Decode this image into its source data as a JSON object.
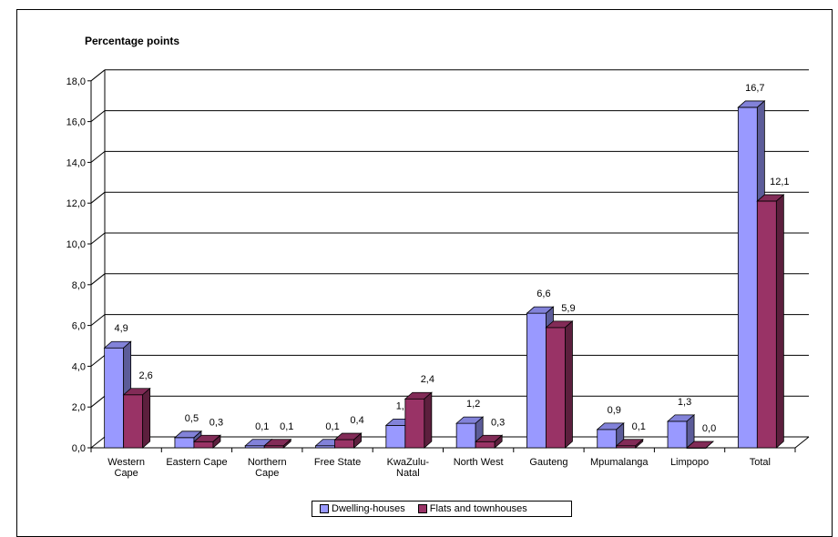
{
  "chart_data": {
    "type": "bar",
    "title": "",
    "ylabel": "Percentage points",
    "xlabel": "",
    "ylim": [
      0,
      18
    ],
    "yticks": [
      "0,0",
      "2,0",
      "4,0",
      "6,0",
      "8,0",
      "10,0",
      "12,0",
      "14,0",
      "16,0",
      "18,0"
    ],
    "categories": [
      [
        "Western",
        "Cape"
      ],
      [
        "Eastern Cape"
      ],
      [
        "Northern",
        "Cape"
      ],
      [
        "Free State"
      ],
      [
        "KwaZulu-",
        "Natal"
      ],
      [
        "North West"
      ],
      [
        "Gauteng"
      ],
      [
        "Mpumalanga"
      ],
      [
        "Limpopo"
      ],
      [
        "Total"
      ]
    ],
    "series": [
      {
        "name": "Dwelling-houses",
        "color": "#9999ff",
        "values": [
          4.9,
          0.5,
          0.1,
          0.1,
          1.1,
          1.2,
          6.6,
          0.9,
          1.3,
          16.7
        ],
        "labels": [
          "4,9",
          "0,5",
          "0,1",
          "0,1",
          "1,1",
          "1,2",
          "6,6",
          "0,9",
          "1,3",
          "16,7"
        ]
      },
      {
        "name": "Flats and townhouses",
        "color": "#993366",
        "values": [
          2.6,
          0.3,
          0.1,
          0.4,
          2.4,
          0.3,
          5.9,
          0.1,
          0.0,
          12.1
        ],
        "labels": [
          "2,6",
          "0,3",
          "0,1",
          "0,4",
          "2,4",
          "0,3",
          "5,9",
          "0,1",
          "0,0",
          "12,1"
        ]
      }
    ],
    "grid": true,
    "legend_position": "bottom"
  }
}
